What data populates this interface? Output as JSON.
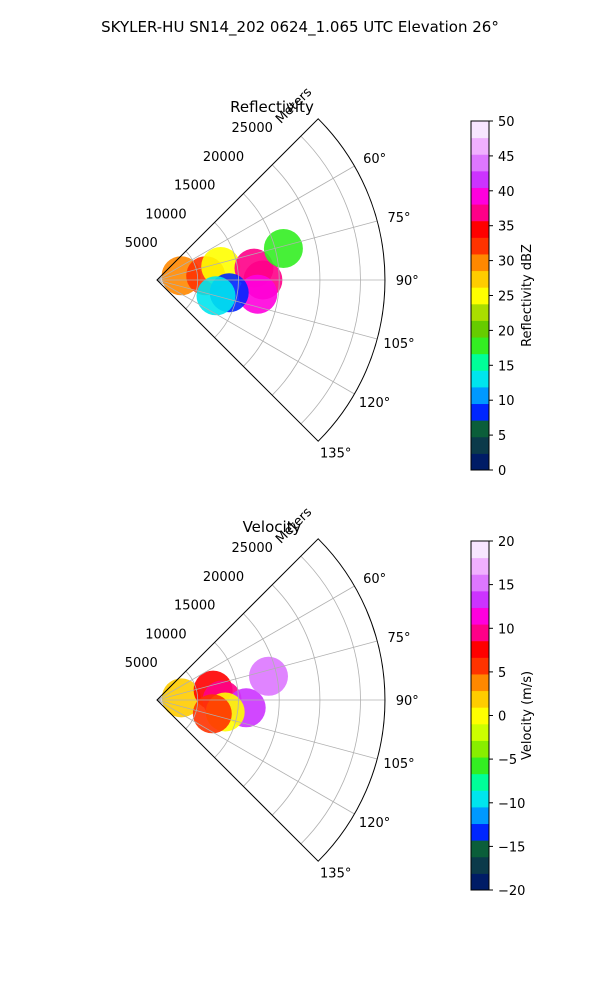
{
  "figure": {
    "title": "SKYLER-HU  SN14_202  0624_1.065 UTC Elevation 26°"
  },
  "chart_data": [
    {
      "type": "polar-sector",
      "title": "Reflectivity",
      "range_label": "Meters",
      "azimuth_range_deg": [
        45,
        135
      ],
      "radius_max_m": 28000,
      "radial_ticks_m": [
        5000,
        10000,
        15000,
        20000,
        25000
      ],
      "radial_tick_labels": [
        "5000",
        "10000",
        "15000",
        "20000",
        "25000"
      ],
      "angle_ticks_deg": [
        60,
        75,
        90,
        105,
        120,
        135
      ],
      "angle_tick_labels": [
        "60°",
        "75°",
        "90°",
        "105°",
        "120°",
        "135°"
      ],
      "grid": true,
      "colorbar": {
        "label": "Reflectivity dBZ",
        "min": 0,
        "max": 50,
        "ticks": [
          0,
          5,
          10,
          15,
          20,
          25,
          30,
          35,
          40,
          45,
          50
        ],
        "tick_labels": [
          "0",
          "5",
          "10",
          "15",
          "20",
          "25",
          "30",
          "35",
          "40",
          "45",
          "50"
        ],
        "colors": [
          "#001c66",
          "#0b3a4a",
          "#0b5e3a",
          "#0026ff",
          "#0099ff",
          "#00e5ee",
          "#00ff99",
          "#33ee22",
          "#66cc00",
          "#aadd00",
          "#ffff00",
          "#ffcc00",
          "#ff8800",
          "#ff3300",
          "#ff0000",
          "#ff0088",
          "#ff00dd",
          "#cc33ff",
          "#dd77ff",
          "#f0b0ff",
          "#f8e6ff"
        ]
      },
      "echo_cells": [
        {
          "az": 80,
          "r": 3000,
          "value": 30
        },
        {
          "az": 85,
          "r": 6000,
          "value": 32
        },
        {
          "az": 78,
          "r": 8000,
          "value": 24
        },
        {
          "az": 83,
          "r": 12000,
          "value": 38
        },
        {
          "az": 90,
          "r": 13000,
          "value": 36
        },
        {
          "az": 98,
          "r": 12500,
          "value": 40
        },
        {
          "az": 76,
          "r": 16000,
          "value": 18
        },
        {
          "az": 100,
          "r": 9000,
          "value": 8
        },
        {
          "az": 105,
          "r": 7500,
          "value": 12
        }
      ]
    },
    {
      "type": "polar-sector",
      "title": "Velocity",
      "range_label": "Meters",
      "azimuth_range_deg": [
        45,
        135
      ],
      "radius_max_m": 28000,
      "radial_ticks_m": [
        5000,
        10000,
        15000,
        20000,
        25000
      ],
      "radial_tick_labels": [
        "5000",
        "10000",
        "15000",
        "20000",
        "25000"
      ],
      "angle_ticks_deg": [
        60,
        75,
        90,
        105,
        120,
        135
      ],
      "angle_tick_labels": [
        "60°",
        "75°",
        "90°",
        "105°",
        "120°",
        "135°"
      ],
      "grid": true,
      "colorbar": {
        "label": "Velocity (m/s)",
        "min": -20,
        "max": 20,
        "ticks": [
          -20,
          -15,
          -10,
          -5,
          0,
          5,
          10,
          15,
          20
        ],
        "tick_labels": [
          "−20",
          "−15",
          "−10",
          "−5",
          "0",
          "5",
          "10",
          "15",
          "20"
        ],
        "colors": [
          "#001c66",
          "#0b3a4a",
          "#0b5e3a",
          "#0026ff",
          "#0099ff",
          "#00e5ee",
          "#00ff99",
          "#33ee22",
          "#88ee00",
          "#ccff00",
          "#ffff00",
          "#ffcc00",
          "#ff8800",
          "#ff3300",
          "#ff0000",
          "#ff0088",
          "#ff00dd",
          "#cc33ff",
          "#dd77ff",
          "#f0b0ff",
          "#f8e6ff"
        ]
      },
      "echo_cells": [
        {
          "az": 85,
          "r": 3000,
          "value": 2
        },
        {
          "az": 80,
          "r": 7000,
          "value": 8
        },
        {
          "az": 90,
          "r": 8000,
          "value": 10
        },
        {
          "az": 95,
          "r": 11000,
          "value": 14
        },
        {
          "az": 78,
          "r": 14000,
          "value": 15
        },
        {
          "az": 100,
          "r": 8500,
          "value": 0
        },
        {
          "az": 104,
          "r": 7000,
          "value": 6
        }
      ]
    }
  ]
}
